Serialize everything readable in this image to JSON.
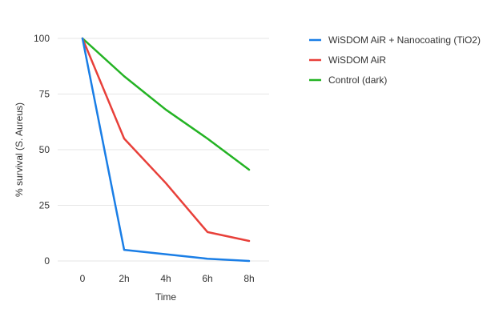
{
  "chart_data": {
    "type": "line",
    "categories": [
      "0",
      "2h",
      "4h",
      "6h",
      "8h"
    ],
    "series": [
      {
        "name": "WiSDOM AiR + Nanocoating (TiO2)",
        "color": "#1a7ee6",
        "values": [
          100,
          5,
          3,
          1,
          0
        ]
      },
      {
        "name": "WiSDOM AiR",
        "color": "#e8403a",
        "values": [
          100,
          55,
          35,
          13,
          9
        ]
      },
      {
        "name": "Control (dark)",
        "color": "#24b324",
        "values": [
          100,
          83,
          68,
          55,
          41
        ]
      }
    ],
    "y_ticks": [
      0,
      25,
      50,
      75,
      100
    ],
    "ylim": [
      0,
      100
    ],
    "xlabel": "Time",
    "ylabel": "% survival (S. Aureus)",
    "grid": true,
    "legend_position": "top-right"
  }
}
